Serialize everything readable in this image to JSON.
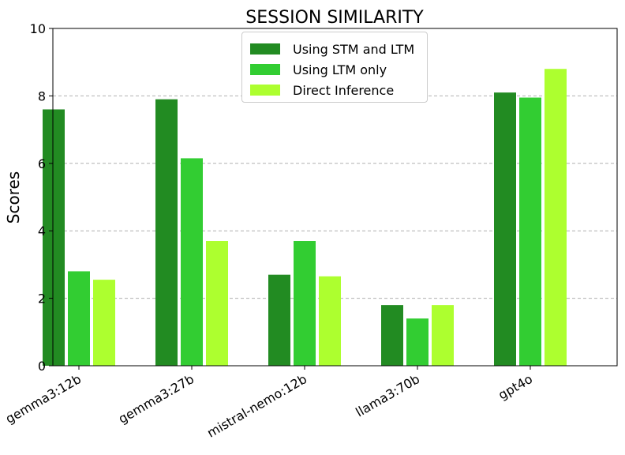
{
  "chart_data": {
    "type": "bar",
    "title": "SESSION SIMILARITY",
    "xlabel": "",
    "ylabel": "Scores",
    "ylim": [
      0,
      10
    ],
    "yticks": [
      "0",
      "2",
      "4",
      "6",
      "8",
      "10"
    ],
    "categories": [
      "gemma3:12b",
      "gemma3:27b",
      "mistral-nemo:12b",
      "llama3:70b",
      "gpt4o"
    ],
    "series": [
      {
        "name": "Using STM and LTM",
        "color": "#228B22",
        "values": [
          7.6,
          7.9,
          2.7,
          1.8,
          8.1
        ]
      },
      {
        "name": "Using LTM only",
        "color": "#32CD32",
        "values": [
          2.8,
          6.15,
          3.7,
          1.4,
          7.95
        ]
      },
      {
        "name": "Direct Inference",
        "color": "#ADFF2F",
        "values": [
          2.55,
          3.7,
          2.65,
          1.8,
          8.8
        ]
      }
    ],
    "grid": "y-dashed",
    "legend_position": "top-center"
  }
}
